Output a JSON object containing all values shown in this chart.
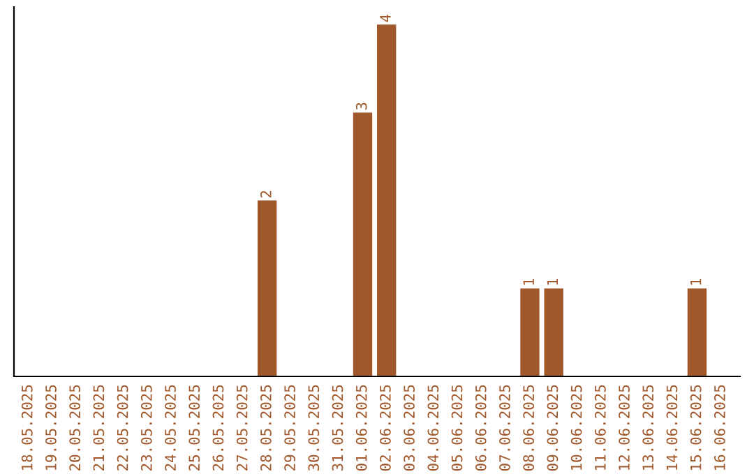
{
  "chart_data": {
    "type": "bar",
    "categories": [
      "18.05.2025",
      "19.05.2025",
      "20.05.2025",
      "21.05.2025",
      "22.05.2025",
      "23.05.2025",
      "24.05.2025",
      "25.05.2025",
      "26.05.2025",
      "27.05.2025",
      "28.05.2025",
      "29.05.2025",
      "30.05.2025",
      "31.05.2025",
      "01.06.2025",
      "02.06.2025",
      "03.06.2025",
      "04.06.2025",
      "05.06.2025",
      "06.06.2025",
      "07.06.2025",
      "08.06.2025",
      "09.06.2025",
      "10.06.2025",
      "11.06.2025",
      "12.06.2025",
      "13.06.2025",
      "14.06.2025",
      "15.06.2025",
      "16.06.2025"
    ],
    "values": [
      0,
      0,
      0,
      0,
      0,
      0,
      0,
      0,
      0,
      0,
      2,
      0,
      0,
      0,
      3,
      4,
      0,
      0,
      0,
      0,
      0,
      1,
      1,
      0,
      0,
      0,
      0,
      0,
      1,
      0
    ],
    "value_labels": [
      null,
      null,
      null,
      null,
      null,
      null,
      null,
      null,
      null,
      null,
      "2",
      null,
      null,
      null,
      "3",
      "4",
      null,
      null,
      null,
      null,
      null,
      "1",
      "1",
      null,
      null,
      null,
      null,
      null,
      "1",
      null
    ],
    "color": "#a0572a",
    "tick_labels": "x",
    "grid": false,
    "legend": false
  }
}
